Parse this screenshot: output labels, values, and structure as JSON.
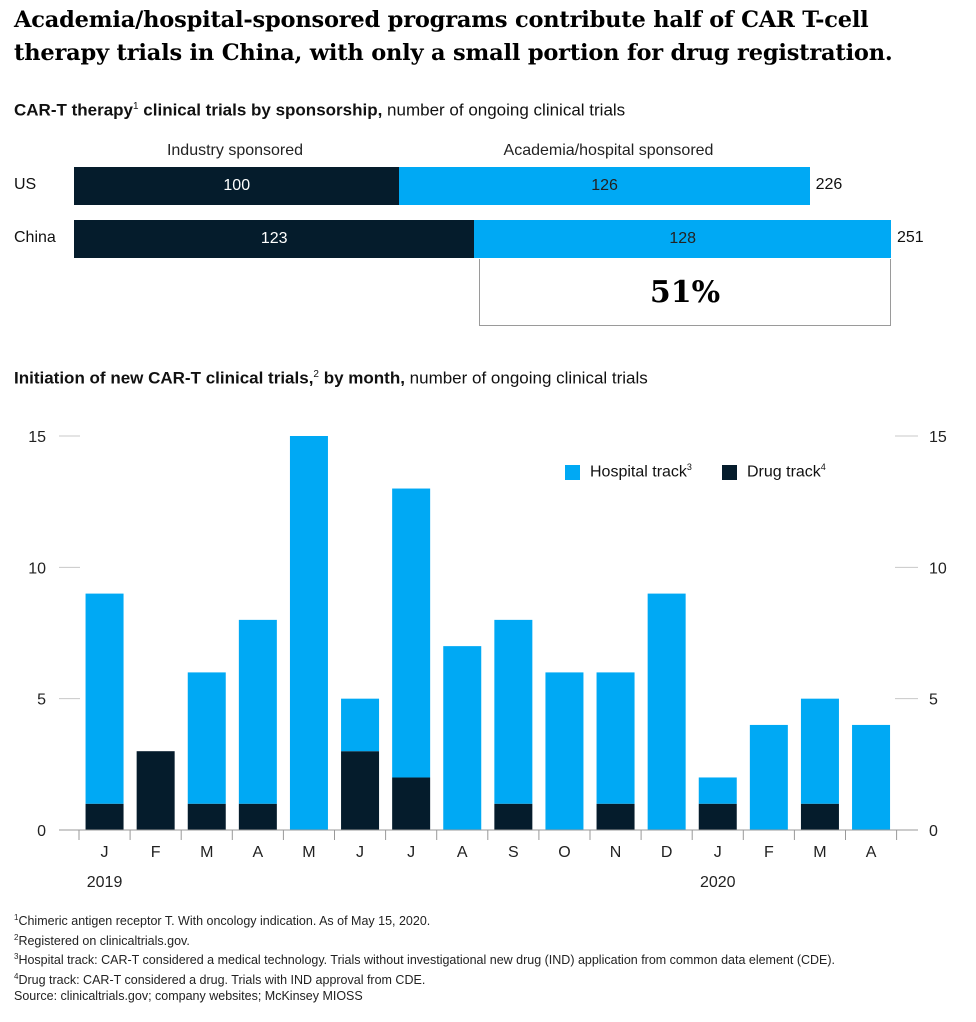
{
  "title": "Academia/hospital-sponsored programs contribute half of CAR T-cell therapy trials in China, with only a small portion for drug registration.",
  "section1": {
    "subtitle_bold": "CAR-T therapy",
    "subtitle_sup": "1",
    "subtitle_bold2": " clinical trials by sponsorship,",
    "subtitle_rest": " number of ongoing clinical trials",
    "col_industry": "Industry sponsored",
    "col_academia": "Academia/hospital sponsored",
    "highlight_pct": "51%"
  },
  "section2": {
    "subtitle_bold": "Initiation of new CAR-T clinical trials,",
    "subtitle_sup": "2",
    "subtitle_bold2": " by month,",
    "subtitle_rest": " number of ongoing clinical trials",
    "legend_hospital": "Hospital track",
    "legend_hospital_sup": "3",
    "legend_drug": "Drug track",
    "legend_drug_sup": "4"
  },
  "colors": {
    "dark": "#051c2c",
    "blue": "#00a9f4",
    "grid": "#c8c8c8"
  },
  "chart_data": [
    {
      "type": "bar",
      "orientation": "horizontal-stacked",
      "categories": [
        "US",
        "China"
      ],
      "series": [
        {
          "name": "Industry sponsored",
          "values": [
            100,
            123
          ]
        },
        {
          "name": "Academia/hospital sponsored",
          "values": [
            126,
            128
          ]
        }
      ],
      "totals": [
        226,
        251
      ]
    },
    {
      "type": "bar",
      "orientation": "vertical-stacked",
      "categories": [
        "J",
        "F",
        "M",
        "A",
        "M",
        "J",
        "J",
        "A",
        "S",
        "O",
        "N",
        "D",
        "J",
        "F",
        "M",
        "A"
      ],
      "year_labels": [
        {
          "label": "2019",
          "index": 0
        },
        {
          "label": "2020",
          "index": 12
        }
      ],
      "series": [
        {
          "name": "Drug track",
          "values": [
            1,
            3,
            1,
            1,
            0,
            3,
            2,
            0,
            1,
            0,
            1,
            0,
            1,
            0,
            1,
            0
          ]
        },
        {
          "name": "Hospital track",
          "values": [
            8,
            0,
            5,
            7,
            15,
            2,
            11,
            7,
            7,
            6,
            5,
            9,
            1,
            4,
            4,
            4
          ]
        }
      ],
      "yticks": [
        0,
        5,
        10,
        15
      ],
      "ylim": [
        0,
        15
      ],
      "legend": "top-right"
    }
  ],
  "footnotes": [
    {
      "sup": "1",
      "text": "Chimeric antigen receptor T. With oncology indication. As of May 15, 2020."
    },
    {
      "sup": "2",
      "text": "Registered on clinicaltrials.gov."
    },
    {
      "sup": "3",
      "text": "Hospital track: CAR-T considered a medical technology. Trials without investigational new drug (IND) application from common data element (CDE)."
    },
    {
      "sup": "4",
      "text": "Drug track: CAR-T considered a drug. Trials with IND approval from CDE."
    }
  ],
  "source": "Source: clinicaltrials.gov; company websites; McKinsey MIOSS"
}
